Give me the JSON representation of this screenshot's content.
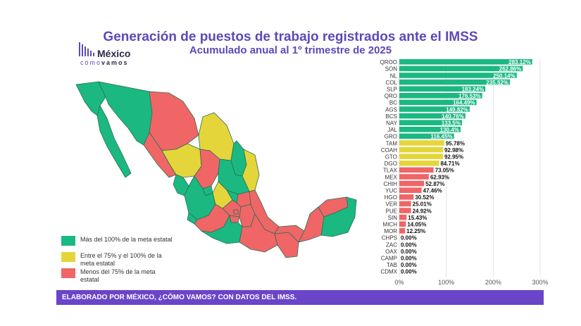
{
  "title": "Generación de puestos de trabajo registrados ante el IMSS",
  "subtitle": "Acumulado anual al 1º trimestre de 2025",
  "logo": {
    "name": "México",
    "sub_a": "cómo",
    "sub_b": "vamos"
  },
  "legend": [
    {
      "label": "Más del 100% de la meta estatal",
      "color": "#1bb882"
    },
    {
      "label": "Entre el 75% y el 100% de la meta estatal",
      "color": "#e4d63a"
    },
    {
      "label": "Menos del 75% de la meta estatal",
      "color": "#f06566"
    }
  ],
  "footer": "ELABORADO POR MÉXICO, ¿CÓMO VAMOS? CON DATOS DEL IMSS.",
  "chart_data": {
    "type": "bar",
    "orientation": "horizontal",
    "title": "Generación de puestos de trabajo registrados ante el IMSS",
    "subtitle": "Acumulado anual al 1º trimestre de 2025",
    "categories": [
      "QROO",
      "SON",
      "NL",
      "COL",
      "SLP",
      "QRO",
      "BC",
      "AGS",
      "BCS",
      "NAY",
      "JAL",
      "GRO",
      "TAM",
      "COAH",
      "GTO",
      "DGO",
      "TLAX",
      "MEX",
      "CHIH",
      "YUC",
      "HGO",
      "VER",
      "PUE",
      "SIN",
      "MICH",
      "MOR",
      "CHPS",
      "ZAC",
      "OAX",
      "CAMP",
      "TAB",
      "CDMX"
    ],
    "values": [
      283.12,
      262.86,
      250.14,
      235.52,
      183.24,
      176.53,
      164.49,
      149.82,
      140.76,
      133.5,
      130.4,
      116.45,
      95.78,
      92.98,
      92.95,
      84.71,
      73.05,
      62.93,
      52.87,
      47.46,
      30.52,
      25.01,
      24.92,
      15.43,
      14.05,
      12.25,
      0,
      0,
      0,
      0,
      0,
      0
    ],
    "value_labels": [
      "283.12%",
      "262.86%",
      "250.14%",
      "235.52%",
      "183.24%",
      "176.53%",
      "164.49%",
      "149.82%",
      "140.76%",
      "133.5%",
      "130.4%",
      "116.45%",
      "95.78%",
      "92.98%",
      "92.95%",
      "84.71%",
      "73.05%",
      "62.93%",
      "52.87%",
      "47.46%",
      "30.52%",
      "25.01%",
      "24.92%",
      "15.43%",
      "14.05%",
      "12.25%",
      "0.00%",
      "0.00%",
      "0.00%",
      "0.00%",
      "0.00%",
      "0.00%"
    ],
    "xlim": [
      0,
      300
    ],
    "x_ticks": [
      "0%",
      "100%",
      "200%",
      "300%"
    ],
    "colors": {
      "above_100": "#1bb882",
      "between_75_100": "#e4d63a",
      "below_75": "#f06566"
    },
    "grid": true
  }
}
